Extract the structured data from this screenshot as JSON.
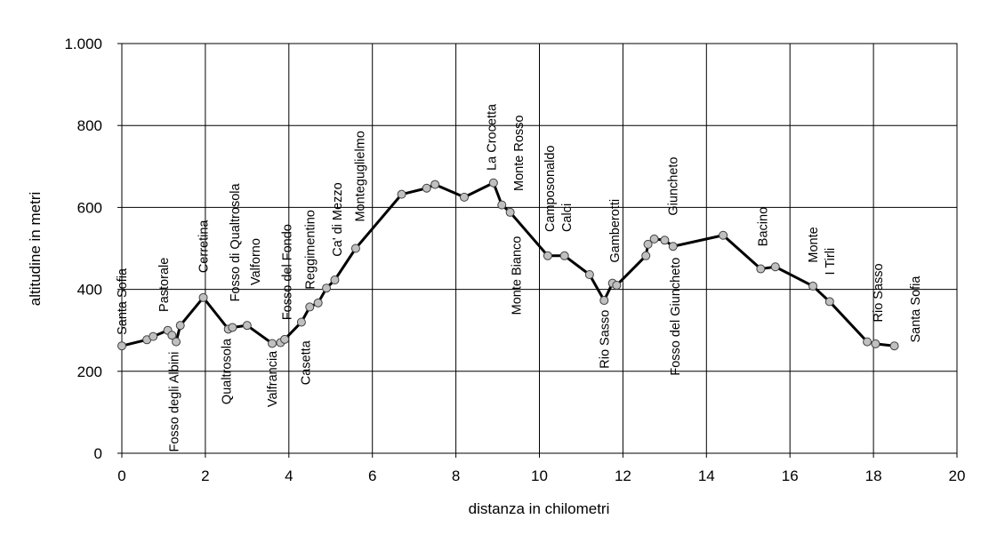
{
  "chart_data": {
    "type": "line",
    "xlabel": "distanza in chilometri",
    "ylabel": "altitudine  in metri",
    "xlim": [
      0,
      20
    ],
    "ylim": [
      0,
      1000
    ],
    "x_ticks": [
      0,
      2,
      4,
      6,
      8,
      10,
      12,
      14,
      16,
      18,
      20
    ],
    "y_ticks": [
      0,
      200,
      400,
      600,
      800,
      1000
    ],
    "y_tick_labels": [
      "0",
      "200",
      "400",
      "600",
      "800",
      "1.000"
    ],
    "grid": true,
    "line_color": "#000000",
    "marker_color": "#c0c0c0",
    "points": [
      {
        "x": 0.0,
        "y": 262
      },
      {
        "x": 0.6,
        "y": 277
      },
      {
        "x": 0.75,
        "y": 285
      },
      {
        "x": 1.1,
        "y": 300
      },
      {
        "x": 1.2,
        "y": 288
      },
      {
        "x": 1.3,
        "y": 272
      },
      {
        "x": 1.4,
        "y": 312
      },
      {
        "x": 1.95,
        "y": 380
      },
      {
        "x": 2.55,
        "y": 303
      },
      {
        "x": 2.65,
        "y": 307
      },
      {
        "x": 3.0,
        "y": 312
      },
      {
        "x": 3.6,
        "y": 268
      },
      {
        "x": 3.8,
        "y": 270
      },
      {
        "x": 3.9,
        "y": 278
      },
      {
        "x": 4.3,
        "y": 320
      },
      {
        "x": 4.5,
        "y": 357
      },
      {
        "x": 4.7,
        "y": 367
      },
      {
        "x": 4.9,
        "y": 403
      },
      {
        "x": 5.1,
        "y": 423
      },
      {
        "x": 5.6,
        "y": 500
      },
      {
        "x": 6.7,
        "y": 632
      },
      {
        "x": 7.3,
        "y": 647
      },
      {
        "x": 7.5,
        "y": 656
      },
      {
        "x": 8.2,
        "y": 625
      },
      {
        "x": 8.9,
        "y": 660
      },
      {
        "x": 9.1,
        "y": 606
      },
      {
        "x": 9.3,
        "y": 588
      },
      {
        "x": 10.2,
        "y": 482
      },
      {
        "x": 10.6,
        "y": 482
      },
      {
        "x": 11.2,
        "y": 436
      },
      {
        "x": 11.55,
        "y": 373
      },
      {
        "x": 11.75,
        "y": 415
      },
      {
        "x": 11.85,
        "y": 410
      },
      {
        "x": 12.55,
        "y": 482
      },
      {
        "x": 12.6,
        "y": 510
      },
      {
        "x": 12.75,
        "y": 523
      },
      {
        "x": 13.0,
        "y": 520
      },
      {
        "x": 13.2,
        "y": 505
      },
      {
        "x": 14.4,
        "y": 532
      },
      {
        "x": 15.3,
        "y": 450
      },
      {
        "x": 15.65,
        "y": 455
      },
      {
        "x": 16.55,
        "y": 408
      },
      {
        "x": 16.95,
        "y": 370
      },
      {
        "x": 17.85,
        "y": 272
      },
      {
        "x": 18.05,
        "y": 267
      },
      {
        "x": 18.5,
        "y": 262
      }
    ],
    "annotations": [
      {
        "text": "Santa Sofia",
        "x": 0.0,
        "y": 370,
        "anchor": "middle"
      },
      {
        "text": "Pastorale",
        "x": 1.0,
        "y": 345,
        "anchor": "start"
      },
      {
        "text": "Fosso degli Albini",
        "x": 1.25,
        "y": 248,
        "anchor": "end"
      },
      {
        "text": "Cerretina",
        "x": 1.95,
        "y": 440,
        "anchor": "start"
      },
      {
        "text": "Qualtrosola",
        "x": 2.5,
        "y": 280,
        "anchor": "end"
      },
      {
        "text": "Fosso di Qualtrosola",
        "x": 2.7,
        "y": 370,
        "anchor": "start"
      },
      {
        "text": "Valforno",
        "x": 3.2,
        "y": 410,
        "anchor": "start"
      },
      {
        "text": "Valfrancia",
        "x": 3.6,
        "y": 250,
        "anchor": "end"
      },
      {
        "text": "Fosso del Fondo",
        "x": 3.95,
        "y": 325,
        "anchor": "start"
      },
      {
        "text": "Casetta",
        "x": 4.4,
        "y": 275,
        "anchor": "end"
      },
      {
        "text": "Reggimentino",
        "x": 4.5,
        "y": 400,
        "anchor": "start"
      },
      {
        "text": "Ca' di Mezzo",
        "x": 5.15,
        "y": 480,
        "anchor": "start"
      },
      {
        "text": "Monteguglielmo",
        "x": 5.7,
        "y": 565,
        "anchor": "start"
      },
      {
        "text": "La Crocetta",
        "x": 8.85,
        "y": 690,
        "anchor": "start"
      },
      {
        "text": "Monte Rosso",
        "x": 9.5,
        "y": 640,
        "anchor": "start"
      },
      {
        "text": "Monte Bianco",
        "x": 9.45,
        "y": 530,
        "anchor": "end"
      },
      {
        "text": "Camposonaldo",
        "x": 10.25,
        "y": 540,
        "anchor": "start"
      },
      {
        "text": "Calci",
        "x": 10.65,
        "y": 540,
        "anchor": "start"
      },
      {
        "text": "Rio Sasso",
        "x": 11.55,
        "y": 350,
        "anchor": "end"
      },
      {
        "text": "Gamberotti",
        "x": 11.8,
        "y": 465,
        "anchor": "start"
      },
      {
        "text": "Giuncheto",
        "x": 13.2,
        "y": 580,
        "anchor": "start"
      },
      {
        "text": "Fosso del Giuncheto",
        "x": 13.25,
        "y": 478,
        "anchor": "end"
      },
      {
        "text": "Bacino",
        "x": 15.35,
        "y": 505,
        "anchor": "start"
      },
      {
        "text": "Monte",
        "x": 16.55,
        "y": 465,
        "anchor": "start"
      },
      {
        "text": "I Tirli",
        "x": 16.95,
        "y": 435,
        "anchor": "start"
      },
      {
        "text": "Rio Sasso",
        "x": 18.1,
        "y": 320,
        "anchor": "start"
      },
      {
        "text": "Santa Sofia",
        "x": 19.0,
        "y": 270,
        "anchor": "start"
      }
    ]
  }
}
